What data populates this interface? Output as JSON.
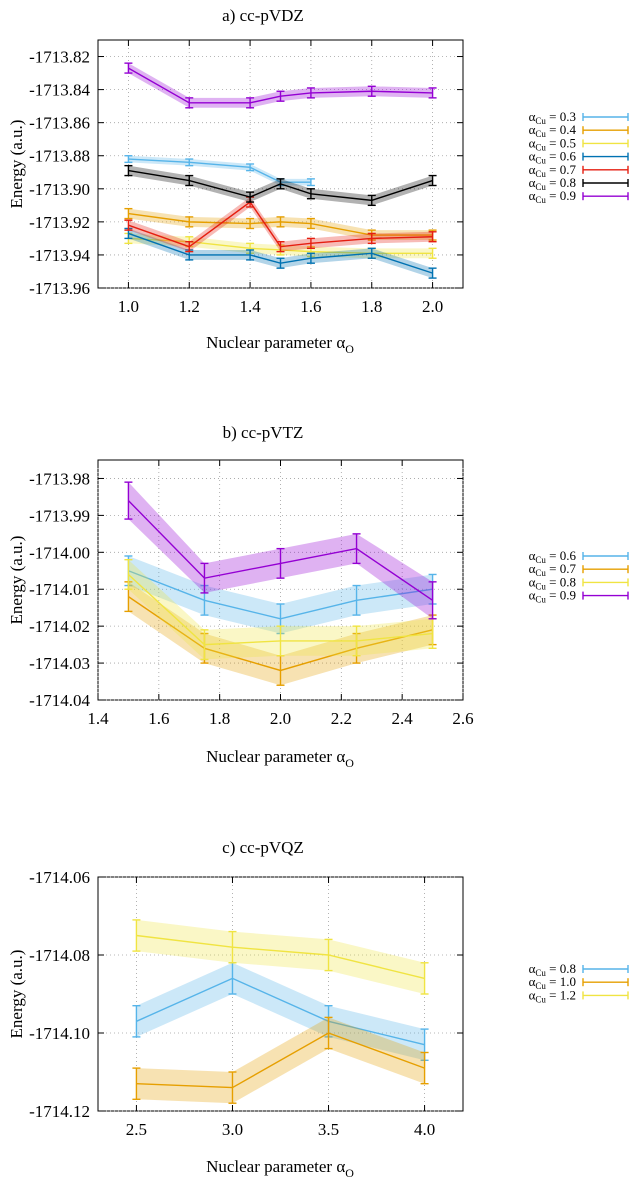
{
  "chart_data": [
    {
      "type": "line",
      "title": "a) cc-pVDZ",
      "xlabel_text": "Nuclear parameter α",
      "xlabel_sub": "O",
      "ylabel": "Energy (a.u.)",
      "xlim": [
        0.9,
        2.1
      ],
      "ylim": [
        -1713.96,
        -1713.81
      ],
      "xticks": [
        1.0,
        1.2,
        1.4,
        1.6,
        1.8,
        2.0
      ],
      "xtick_labels": [
        "1.0",
        "1.2",
        "1.4",
        "1.6",
        "1.8",
        "2.0"
      ],
      "yticks": [
        -1713.82,
        -1713.84,
        -1713.86,
        -1713.88,
        -1713.9,
        -1713.92,
        -1713.94,
        -1713.96
      ],
      "ytick_labels": [
        "-1713.82",
        "-1713.84",
        "-1713.86",
        "-1713.88",
        "-1713.90",
        "-1713.92",
        "-1713.94",
        "-1713.96"
      ],
      "grid": true,
      "legend_position": "right",
      "x": [
        1.0,
        1.2,
        1.4,
        1.5,
        1.6,
        1.8,
        2.0
      ],
      "series": [
        {
          "label_sub": "Cu",
          "label_value": " = 0.3",
          "color": "#56b4e9",
          "y": [
            -1713.882,
            -1713.884,
            -1713.887,
            -1713.896,
            -1713.896,
            null,
            null
          ],
          "err": [
            0.002,
            0.002,
            0.002,
            0.002,
            0.002,
            null,
            null
          ]
        },
        {
          "label_sub": "Cu",
          "label_value": " = 0.4",
          "color": "#e69f00",
          "y": [
            -1713.915,
            -1713.92,
            -1713.921,
            -1713.92,
            -1713.921,
            -1713.928,
            -1713.928
          ],
          "err": [
            0.003,
            0.003,
            0.003,
            0.003,
            0.003,
            0.003,
            0.003
          ]
        },
        {
          "label_sub": "Cu",
          "label_value": " = 0.5",
          "color": "#f0e442",
          "y": [
            -1713.93,
            -1713.932,
            -1713.936,
            -1713.937,
            -1713.938,
            -1713.939,
            -1713.939
          ],
          "err": [
            0.003,
            0.003,
            0.003,
            0.003,
            0.003,
            0.003,
            0.003
          ]
        },
        {
          "label_sub": "Cu",
          "label_value": " = 0.6",
          "color": "#0072b2",
          "y": [
            -1713.927,
            -1713.94,
            -1713.94,
            -1713.945,
            -1713.942,
            -1713.939,
            -1713.951
          ],
          "err": [
            0.003,
            0.003,
            0.003,
            0.003,
            0.003,
            0.003,
            0.003
          ]
        },
        {
          "label_sub": "Cu",
          "label_value": " = 0.7",
          "color": "#e51e10",
          "y": [
            -1713.922,
            -1713.935,
            -1713.908,
            -1713.935,
            -1713.933,
            -1713.93,
            -1713.929
          ],
          "err": [
            0.003,
            0.003,
            0.003,
            0.003,
            0.003,
            0.003,
            0.003
          ]
        },
        {
          "label_sub": "Cu",
          "label_value": " = 0.8",
          "color": "#000000",
          "y": [
            -1713.889,
            -1713.895,
            -1713.905,
            -1713.897,
            -1713.903,
            -1713.907,
            -1713.895
          ],
          "err": [
            0.003,
            0.003,
            0.003,
            0.003,
            0.003,
            0.003,
            0.003
          ]
        },
        {
          "label_sub": "Cu",
          "label_value": " = 0.9",
          "color": "#9400d3",
          "y": [
            -1713.827,
            -1713.848,
            -1713.848,
            -1713.844,
            -1713.842,
            -1713.841,
            -1713.842
          ],
          "err": [
            0.003,
            0.003,
            0.003,
            0.003,
            0.003,
            0.003,
            0.003
          ]
        }
      ]
    },
    {
      "type": "line",
      "title": "b) cc-pVTZ",
      "xlabel_text": "Nuclear parameter α",
      "xlabel_sub": "O",
      "ylabel": "Energy (a.u.)",
      "xlim": [
        1.4,
        2.6
      ],
      "ylim": [
        -1714.04,
        -1713.975
      ],
      "xticks": [
        1.4,
        1.6,
        1.8,
        2.0,
        2.2,
        2.4,
        2.6
      ],
      "xtick_labels": [
        "1.4",
        "1.6",
        "1.8",
        "2.0",
        "2.2",
        "2.4",
        "2.6"
      ],
      "yticks": [
        -1713.98,
        -1713.99,
        -1714.0,
        -1714.01,
        -1714.02,
        -1714.03,
        -1714.04
      ],
      "ytick_labels": [
        "-1713.98",
        "-1713.99",
        "-1714.00",
        "-1714.01",
        "-1714.02",
        "-1714.03",
        "-1714.04"
      ],
      "grid": true,
      "legend_position": "right",
      "x": [
        1.5,
        1.75,
        2.0,
        2.25,
        2.5
      ],
      "series": [
        {
          "label_sub": "Cu",
          "label_value": " = 0.6",
          "color": "#56b4e9",
          "y": [
            -1714.005,
            -1714.013,
            -1714.018,
            -1714.013,
            -1714.01
          ],
          "err": [
            0.004,
            0.004,
            0.004,
            0.004,
            0.004
          ]
        },
        {
          "label_sub": "Cu",
          "label_value": " = 0.7",
          "color": "#e69f00",
          "y": [
            -1714.012,
            -1714.026,
            -1714.032,
            -1714.026,
            -1714.021
          ],
          "err": [
            0.004,
            0.004,
            0.004,
            0.004,
            0.004
          ]
        },
        {
          "label_sub": "Cu",
          "label_value": " = 0.8",
          "color": "#f0e442",
          "y": [
            -1714.006,
            -1714.025,
            -1714.024,
            -1714.024,
            -1714.022
          ],
          "err": [
            0.004,
            0.004,
            0.004,
            0.004,
            0.004
          ]
        },
        {
          "label_sub": "Cu",
          "label_value": " = 0.9",
          "color": "#9400d3",
          "y": [
            -1713.986,
            -1714.007,
            -1714.003,
            -1713.999,
            -1714.013
          ],
          "err": [
            0.005,
            0.004,
            0.004,
            0.004,
            0.005
          ]
        }
      ]
    },
    {
      "type": "line",
      "title": "c) cc-pVQZ",
      "xlabel_text": "Nuclear parameter α",
      "xlabel_sub": "O",
      "ylabel": "Energy (a.u.)",
      "xlim": [
        2.3,
        4.2
      ],
      "ylim": [
        -1714.12,
        -1714.06
      ],
      "xticks": [
        2.5,
        3.0,
        3.5,
        4.0
      ],
      "xtick_labels": [
        "2.5",
        "3.0",
        "3.5",
        "4.0"
      ],
      "yticks": [
        -1714.06,
        -1714.08,
        -1714.1,
        -1714.12
      ],
      "ytick_labels": [
        "-1714.06",
        "-1714.08",
        "-1714.10",
        "-1714.12"
      ],
      "grid": true,
      "legend_position": "right",
      "x": [
        2.5,
        3.0,
        3.5,
        4.0
      ],
      "series": [
        {
          "label_sub": "Cu",
          "label_value": " = 0.8",
          "color": "#56b4e9",
          "y": [
            -1714.097,
            -1714.086,
            -1714.097,
            -1714.103
          ],
          "err": [
            0.004,
            0.004,
            0.004,
            0.004
          ]
        },
        {
          "label_sub": "Cu",
          "label_value": " = 1.0",
          "color": "#e69f00",
          "y": [
            -1714.113,
            -1714.114,
            -1714.1,
            -1714.109
          ],
          "err": [
            0.004,
            0.004,
            0.004,
            0.004
          ]
        },
        {
          "label_sub": "Cu",
          "label_value": " = 1.2",
          "color": "#f0e442",
          "y": [
            -1714.075,
            -1714.078,
            -1714.08,
            -1714.086
          ],
          "err": [
            0.004,
            0.004,
            0.004,
            0.004
          ]
        }
      ]
    }
  ]
}
